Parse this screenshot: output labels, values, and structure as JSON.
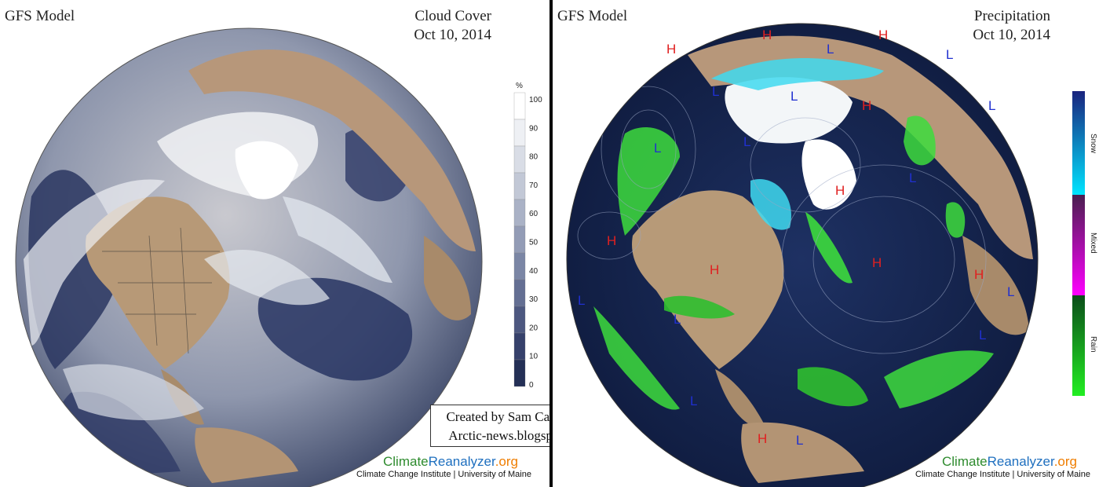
{
  "left": {
    "model_title": "GFS Model",
    "variable_title": "Cloud Cover",
    "date": "Oct 10, 2014",
    "colorbar": {
      "unit": "%",
      "ticks": [
        "100",
        "90",
        "80",
        "70",
        "60",
        "50",
        "40",
        "30",
        "20",
        "10",
        "0"
      ],
      "colors": [
        "#ffffff",
        "#eef0f4",
        "#d9dde6",
        "#c2c8d6",
        "#aab2c6",
        "#939cb6",
        "#7b86a5",
        "#646f93",
        "#4d5880",
        "#36416b",
        "#243056"
      ]
    },
    "brand": {
      "part1": "Climate",
      "part2": "Reanalyzer",
      "part3": ".org"
    },
    "institution": "Climate Change Institute | University of Maine"
  },
  "right": {
    "model_title": "GFS Model",
    "variable_title": "Precipitation",
    "date": "Oct 10, 2014",
    "colorbar": {
      "segments": [
        {
          "label": "Snow",
          "top_color": "#1a237e",
          "bottom_color": "#00e5ff"
        },
        {
          "label": "Mixed",
          "top_color": "#4a1f4f",
          "bottom_color": "#ff00ff"
        },
        {
          "label": "Rain",
          "top_color": "#0b4d1a",
          "bottom_color": "#22ee22"
        }
      ]
    },
    "pressure_labels": [
      {
        "t": "H",
        "c": "#e02020"
      },
      {
        "t": "H",
        "c": "#e02020"
      },
      {
        "t": "H",
        "c": "#e02020"
      },
      {
        "t": "L",
        "c": "#2030d0"
      },
      {
        "t": "H",
        "c": "#e02020"
      },
      {
        "t": "L",
        "c": "#2030d0"
      },
      {
        "t": "L",
        "c": "#2030d0"
      },
      {
        "t": "L",
        "c": "#2030d0"
      },
      {
        "t": "H",
        "c": "#e02020"
      },
      {
        "t": "H",
        "c": "#e02020"
      },
      {
        "t": "H",
        "c": "#e02020"
      },
      {
        "t": "H",
        "c": "#e02020"
      },
      {
        "t": "L",
        "c": "#2030d0"
      },
      {
        "t": "L",
        "c": "#2030d0"
      },
      {
        "t": "L",
        "c": "#2030d0"
      },
      {
        "t": "L",
        "c": "#2030d0"
      },
      {
        "t": "L",
        "c": "#2030d0"
      },
      {
        "t": "H",
        "c": "#e02020"
      },
      {
        "t": "H",
        "c": "#e02020"
      },
      {
        "t": "L",
        "c": "#2030d0"
      },
      {
        "t": "L",
        "c": "#2030d0"
      },
      {
        "t": "L",
        "c": "#2030d0"
      },
      {
        "t": "L",
        "c": "#2030d0"
      },
      {
        "t": "L",
        "c": "#2030d0"
      }
    ],
    "brand": {
      "part1": "Climate",
      "part2": "Reanalyzer",
      "part3": ".org"
    },
    "institution": "Climate Change Institute | University of Maine"
  },
  "credit": {
    "line1": "Created by Sam Carana for",
    "line2": "Arctic-news.blogspot.com"
  },
  "palette": {
    "ocean": "#1c2c5a",
    "land": "#b89a7c",
    "ice": "#ffffff",
    "rain": "#3ddc3d",
    "snow": "#3fd9f0"
  }
}
